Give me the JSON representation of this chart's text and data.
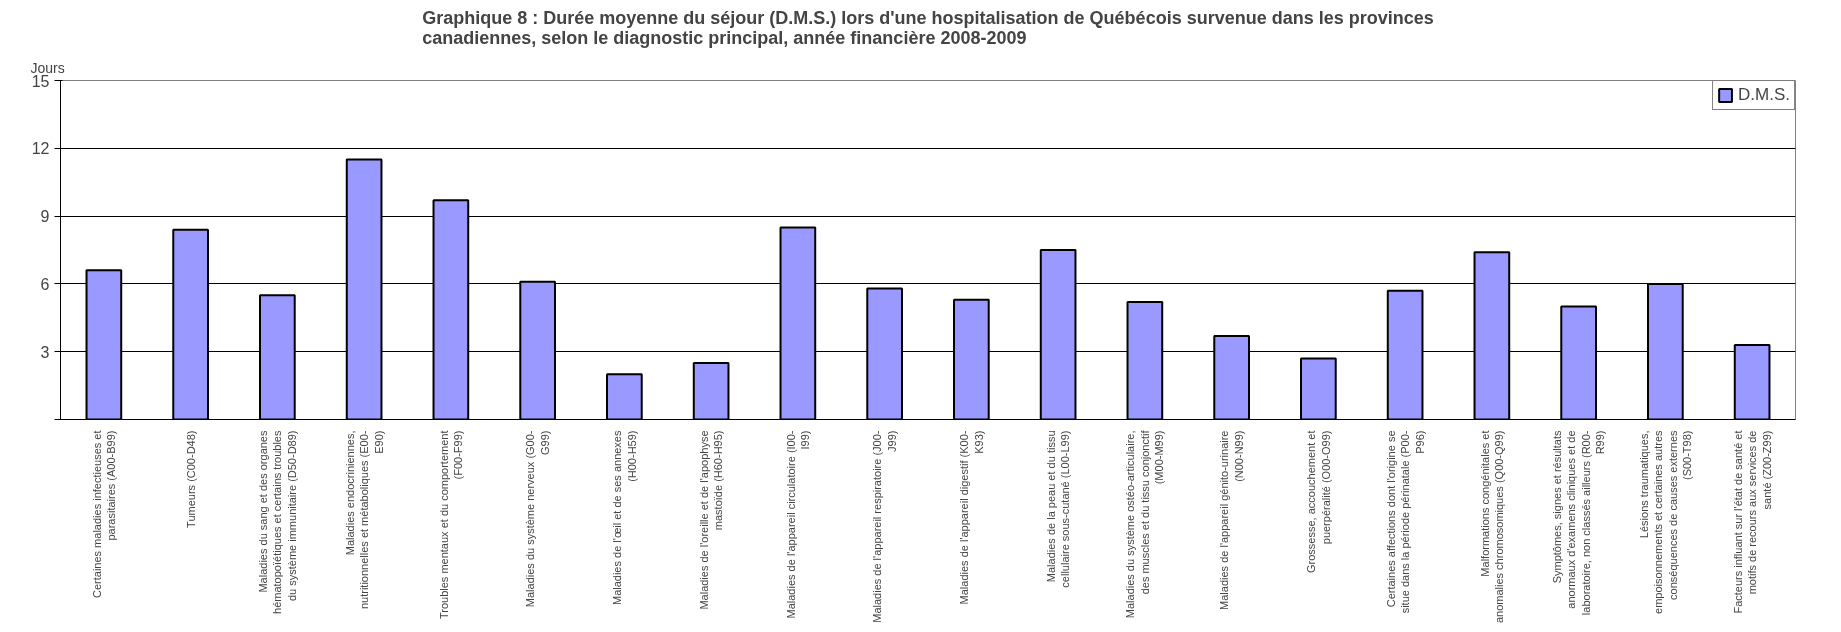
{
  "chart_data": {
    "type": "bar",
    "title": "Graphique 8 : Durée moyenne du séjour (D.M.S.) lors d'une hospitalisation de Québécois survenue dans les provinces\ncanadiennes, selon le diagnostic principal, année financière 2008-2009",
    "ylabel": "Jours",
    "categories": [
      "Certaines maladies infectieuses et\nparasitaires (A00-B99)",
      "Tumeurs (C00-D48)",
      "Maladies du sang et des organes\nhématopoïétiques et certains troubles\ndu système immunitaire (D50-D89)",
      "Maladies endocriniennes,\nnutritionnelles et métaboliques (E00-\nE90)",
      "Troubles mentaux et du comportement\n(F00-F99)",
      "Maladies du système nerveux (G00-\nG99)",
      "Maladies de l'œil et de ses annexes\n(H00-H59)",
      "Maladies de l'oreille et de l'apophyse\nmastoïde (H60-H95)",
      "Maladies de l'appareil circulatoire (I00-\nI99)",
      "Maladies de l'appareil respiratoire (J00-\nJ99)",
      "Maladies de l'appareil digestif (K00-\nK93)",
      "Maladies de la peau et du tissu\ncellulaire sous-cutané (L00-L99)",
      "Maladies du système ostéo-articulaire,\ndes muscles et du tissu conjonctif\n(M00-M99)",
      "Maladies de l'appareil génito-urinaire\n(N00-N99)",
      "Grossesse, accouchement et\npuerpéralité (O00-O99)",
      "Certaines affections dont l'origine se\nsitue dans la période périnatale (P00-\nP96)",
      "Malformations congénitales et\nanomalies chromosomiques (Q00-Q99)",
      "Symptômes, signes et résultats\nanormaux d'examens cliniques et de\nlaboratoire, non classés ailleurs (R00-\nR99)",
      "Lésions traumatiques,\nempoisonnements et certaines autres\nconséquences de causes externes\n(S00-T98)",
      "Facteurs influant sur l'état de santé et\nmotifs de recours aux services de\nsanté (Z00-Z99)"
    ],
    "series": [
      {
        "name": "D.M.S.",
        "color": "#9999ff",
        "values": [
          6.6,
          8.4,
          5.5,
          11.5,
          9.7,
          6.1,
          2.0,
          2.5,
          8.5,
          5.8,
          5.3,
          7.5,
          5.2,
          3.7,
          2.7,
          5.7,
          7.4,
          5.0,
          6.0,
          3.3
        ]
      }
    ],
    "ylim": [
      0,
      15
    ],
    "yticks": [
      {
        "value": 0,
        "label": null
      },
      3,
      6,
      9,
      12,
      15
    ],
    "grid": "y",
    "legend": "top right"
  }
}
